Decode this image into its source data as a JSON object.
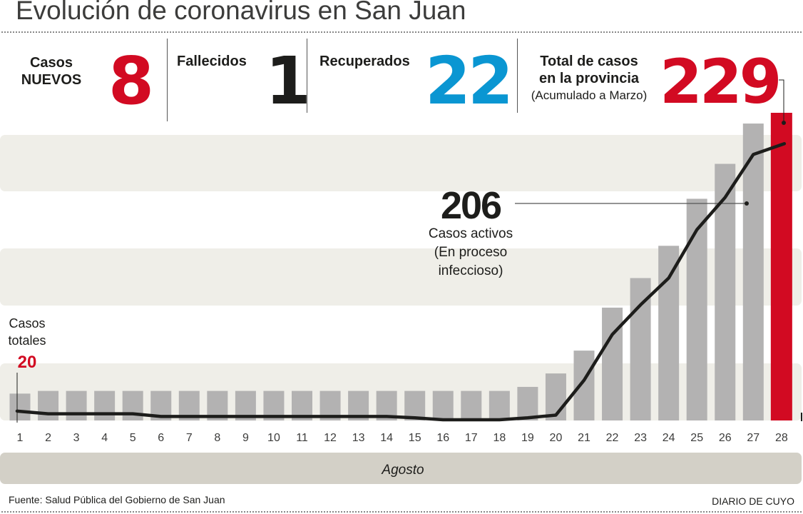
{
  "title": "Evolución de coronavirus en San Juan",
  "stats": {
    "new_cases": {
      "label_1": "Casos",
      "label_2": "NUEVOS",
      "value": "8"
    },
    "deaths": {
      "label": "Fallecidos",
      "value": "1"
    },
    "recovered": {
      "label": "Recuperados",
      "value": "22"
    },
    "total": {
      "label_1": "Total de casos",
      "label_2": "en la provincia",
      "label_3": "(Acumulado a Marzo)",
      "value": "229"
    }
  },
  "colors": {
    "red": "#d20a22",
    "blue": "#0a96d2",
    "bar": "#b3b2b2",
    "band": "#efeee8",
    "dark": "#1d1d1b",
    "month_band": "#d3d0c7"
  },
  "annotations": {
    "start_label_1": "Casos",
    "start_label_2": "totales",
    "start_value": "20",
    "active_value": "206",
    "active_label_1": "Casos activos",
    "active_label_2": "(En proceso",
    "active_label_3": "infeccioso)"
  },
  "month_label": "Agosto",
  "source": "Fuente: Salud Pública del Gobierno de San Juan",
  "brand": "DIARIO DE CUYO",
  "chart_data": {
    "type": "bar",
    "title": "Evolución de coronavirus en San Juan",
    "xlabel": "Agosto",
    "ylabel": "",
    "categories": [
      "1",
      "2",
      "3",
      "4",
      "5",
      "6",
      "7",
      "8",
      "9",
      "10",
      "11",
      "12",
      "13",
      "14",
      "15",
      "16",
      "17",
      "18",
      "19",
      "20",
      "21",
      "22",
      "23",
      "24",
      "25",
      "26",
      "27",
      "28"
    ],
    "ylim": [
      0,
      229
    ],
    "grid": false,
    "legend": "none",
    "series": [
      {
        "name": "Casos totales",
        "type": "bar",
        "values": [
          20,
          22,
          22,
          22,
          22,
          22,
          22,
          22,
          22,
          22,
          22,
          22,
          22,
          22,
          22,
          22,
          22,
          22,
          25,
          35,
          52,
          84,
          106,
          130,
          165,
          191,
          221,
          229
        ],
        "highlight_last": true
      },
      {
        "name": "Casos activos",
        "type": "line",
        "values": [
          7,
          5,
          5,
          5,
          5,
          3,
          3,
          3,
          3,
          3,
          3,
          3,
          3,
          3,
          2,
          0,
          0,
          0,
          2,
          4,
          30,
          64,
          86,
          106,
          142,
          166,
          198,
          206
        ]
      }
    ]
  }
}
